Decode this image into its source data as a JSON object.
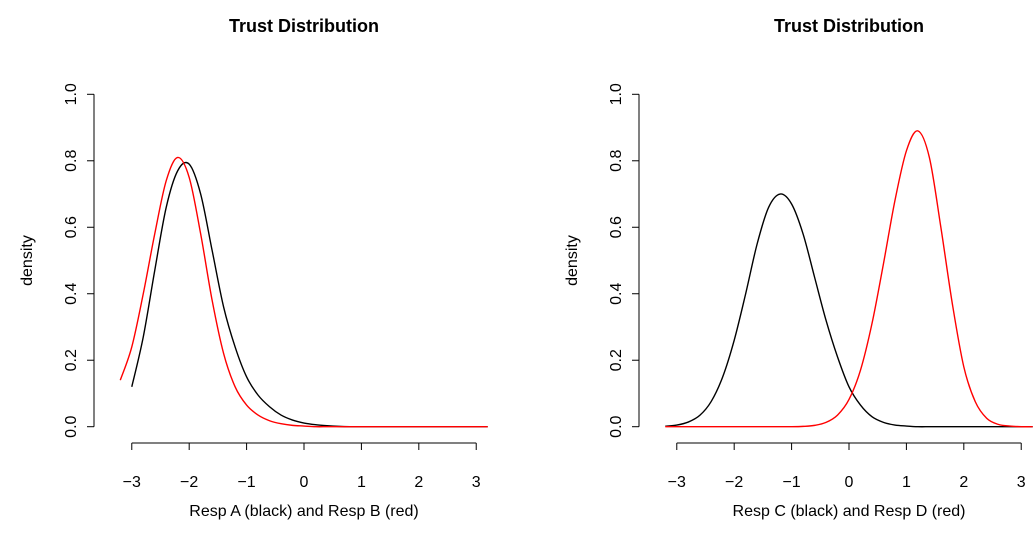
{
  "chart_data": [
    {
      "type": "line",
      "title": "Trust Distribution",
      "xlabel": "Resp A (black) and Resp B (red)",
      "ylabel": "density",
      "x": [
        -3.2,
        -3,
        -2.8,
        -2.6,
        -2.4,
        -2.2,
        -2,
        -1.8,
        -1.6,
        -1.4,
        -1.2,
        -1,
        -0.8,
        -0.6,
        -0.4,
        -0.2,
        0,
        0.2,
        0.4,
        0.6,
        0.8,
        1,
        1.2,
        1.4,
        1.6,
        1.8,
        2,
        2.2,
        2.4,
        2.6,
        2.8,
        3,
        3.2
      ],
      "series": [
        {
          "color": "#000000",
          "values": [
            null,
            0.12,
            0.27,
            0.47,
            0.66,
            0.77,
            0.79,
            0.7,
            0.53,
            0.36,
            0.24,
            0.15,
            0.095,
            0.06,
            0.035,
            0.02,
            0.011,
            0.006,
            0.003,
            0.001,
            0,
            0,
            0,
            0,
            0,
            0,
            0,
            0,
            0,
            0,
            0,
            0,
            0
          ]
        },
        {
          "color": "#ff0000",
          "values": [
            0.14,
            0.24,
            0.4,
            0.58,
            0.74,
            0.81,
            0.75,
            0.58,
            0.38,
            0.22,
            0.12,
            0.065,
            0.035,
            0.018,
            0.009,
            0.004,
            0.002,
            0,
            0,
            0,
            0,
            0,
            0,
            0,
            0,
            0,
            0,
            0,
            0,
            0,
            0,
            0,
            0
          ]
        }
      ],
      "xlim": [
        -3.24,
        3.24
      ],
      "ylim": [
        -0.04,
        1.04
      ],
      "xticks": [
        {
          "value": -3,
          "label": "−3"
        },
        {
          "value": -2,
          "label": "−2"
        },
        {
          "value": -1,
          "label": "−1"
        },
        0,
        1,
        2,
        3
      ],
      "yticks": [
        {
          "value": 0,
          "label": "0.0"
        },
        0.2,
        0.4,
        0.6,
        0.8,
        {
          "value": 1,
          "label": "1.0"
        }
      ]
    },
    {
      "type": "line",
      "title": "Trust Distribution",
      "xlabel": "Resp C (black) and Resp D (red)",
      "ylabel": "density",
      "x": [
        -3.2,
        -3,
        -2.8,
        -2.6,
        -2.4,
        -2.2,
        -2,
        -1.8,
        -1.6,
        -1.4,
        -1.2,
        -1,
        -0.8,
        -0.6,
        -0.4,
        -0.2,
        0,
        0.2,
        0.4,
        0.6,
        0.8,
        1,
        1.2,
        1.4,
        1.6,
        1.8,
        2,
        2.2,
        2.4,
        2.6,
        2.8,
        3,
        3.2
      ],
      "series": [
        {
          "color": "#000000",
          "values": [
            0.0015,
            0.005,
            0.014,
            0.034,
            0.076,
            0.15,
            0.26,
            0.4,
            0.55,
            0.66,
            0.7,
            0.67,
            0.58,
            0.45,
            0.32,
            0.21,
            0.12,
            0.065,
            0.03,
            0.013,
            0.005,
            0.002,
            0,
            0,
            0,
            0,
            0,
            0,
            0,
            0,
            0,
            0,
            0
          ]
        },
        {
          "color": "#ff0000",
          "values": [
            0,
            0,
            0,
            0,
            0,
            0,
            0,
            0,
            0,
            0,
            0,
            0,
            0.001,
            0.004,
            0.013,
            0.035,
            0.082,
            0.17,
            0.31,
            0.49,
            0.68,
            0.83,
            0.89,
            0.81,
            0.6,
            0.37,
            0.18,
            0.075,
            0.025,
            0.007,
            0.002,
            0,
            0
          ]
        }
      ],
      "xlim": [
        -3.24,
        3.24
      ],
      "ylim": [
        -0.04,
        1.04
      ],
      "xticks": [
        {
          "value": -3,
          "label": "−3"
        },
        {
          "value": -2,
          "label": "−2"
        },
        {
          "value": -1,
          "label": "−1"
        },
        0,
        1,
        2,
        3
      ],
      "yticks": [
        {
          "value": 0,
          "label": "0.0"
        },
        0.2,
        0.4,
        0.6,
        0.8,
        {
          "value": 1,
          "label": "1.0"
        }
      ]
    }
  ]
}
